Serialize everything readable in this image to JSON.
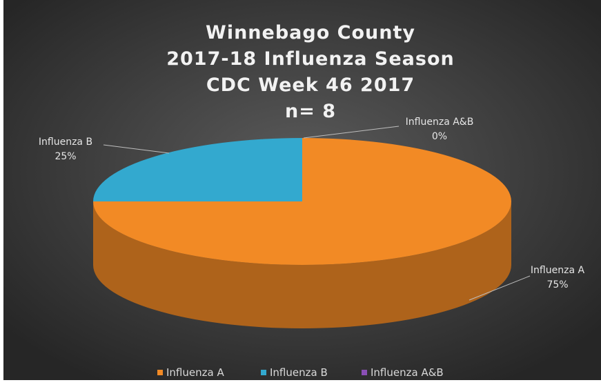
{
  "chart_data": {
    "type": "pie",
    "title": [
      "Winnebago County",
      "2017-18 Influenza Season",
      "CDC Week 46 2017",
      "n= 8"
    ],
    "categories": [
      "Influenza A",
      "Influenza B",
      "Influenza A&B"
    ],
    "values": [
      75,
      25,
      0
    ],
    "value_labels": [
      "75%",
      "25%",
      "0%"
    ],
    "colors": [
      "#f28a25",
      "#33a9cf",
      "#8a4fb5"
    ],
    "legend": "bottom"
  }
}
